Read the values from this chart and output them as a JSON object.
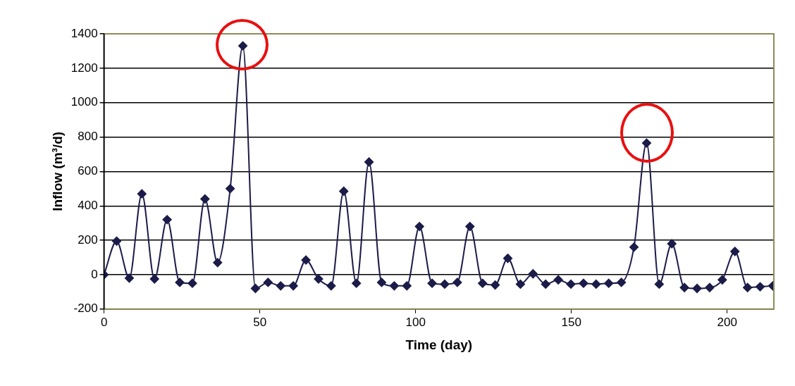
{
  "chart_data": {
    "type": "line",
    "xlabel": "Time (day)",
    "ylabel": "Inflow (m³/d)",
    "xlim": [
      0,
      215
    ],
    "xticks": [
      0,
      50,
      100,
      150,
      200
    ],
    "ylim": [
      -200,
      1400
    ],
    "yticks": [
      -200,
      0,
      200,
      400,
      600,
      800,
      1000,
      1200,
      1400
    ],
    "grid": "y",
    "marker": "diamond",
    "line_style": "solid",
    "series": [
      {
        "color": "#1c1c4a",
        "x": [
          0,
          4.05,
          8.1,
          12.15,
          16.2,
          20.25,
          24.3,
          28.35,
          32.4,
          36.45,
          40.5,
          44.55,
          48.6,
          52.65,
          56.7,
          60.75,
          64.8,
          68.85,
          72.9,
          76.95,
          81,
          85.05,
          89.1,
          93.15,
          97.2,
          101.25,
          105.3,
          109.35,
          113.4,
          117.45,
          121.5,
          125.55,
          129.6,
          133.65,
          137.7,
          141.75,
          145.8,
          149.85,
          153.9,
          157.95,
          162,
          166.05,
          170.1,
          174.15,
          178.2,
          182.25,
          186.3,
          190.35,
          194.4,
          198.45,
          202.5,
          206.55,
          210.6,
          214.65
        ],
        "values": [
          0,
          195,
          -20,
          470,
          -25,
          320,
          -45,
          -50,
          440,
          70,
          500,
          1330,
          -80,
          -45,
          -65,
          -65,
          85,
          -25,
          -65,
          485,
          -50,
          655,
          -45,
          -65,
          -65,
          280,
          -50,
          -55,
          -45,
          280,
          -50,
          -60,
          95,
          -55,
          5,
          -55,
          -30,
          -55,
          -50,
          -55,
          -50,
          -45,
          160,
          765,
          -55,
          180,
          -75,
          -80,
          -75,
          -30,
          135,
          -75,
          -70,
          -65
        ]
      }
    ]
  }
}
